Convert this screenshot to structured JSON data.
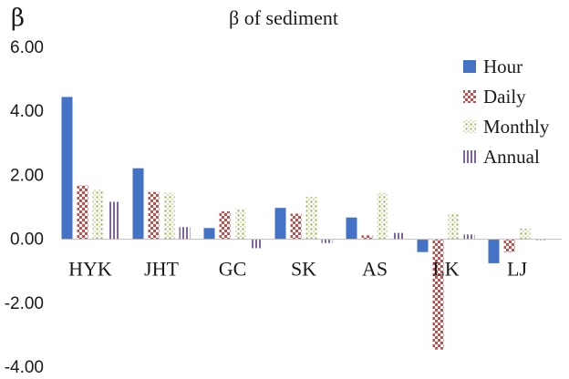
{
  "chart_data": {
    "type": "bar",
    "title": "β of sediment",
    "ylabel": "β",
    "xlabel": "",
    "ylim": [
      -4,
      6
    ],
    "yticks": [
      "6.00",
      "4.00",
      "2.00",
      "0.00",
      "-2.00",
      "-4.00"
    ],
    "grid": false,
    "legend_position": "top-right",
    "categories": [
      "HYK",
      "JHT",
      "GC",
      "SK",
      "AS",
      "LK",
      "LJ"
    ],
    "series": [
      {
        "name": "Hour",
        "values": [
          4.45,
          2.22,
          0.35,
          0.98,
          0.68,
          -0.4,
          -0.75
        ],
        "color": "#4472c4",
        "pattern": "solid"
      },
      {
        "name": "Daily",
        "values": [
          1.68,
          1.48,
          0.87,
          0.8,
          0.12,
          -3.45,
          -0.4
        ],
        "color": "#c0504d",
        "pattern": "checker"
      },
      {
        "name": "Monthly",
        "values": [
          1.55,
          1.45,
          0.95,
          1.32,
          1.45,
          0.8,
          0.33
        ],
        "color": "#9bbb59",
        "pattern": "dots"
      },
      {
        "name": "Annual",
        "values": [
          1.17,
          0.38,
          -0.28,
          -0.12,
          0.2,
          0.15,
          0.0
        ],
        "color": "#8064a2",
        "pattern": "vlines"
      }
    ]
  }
}
